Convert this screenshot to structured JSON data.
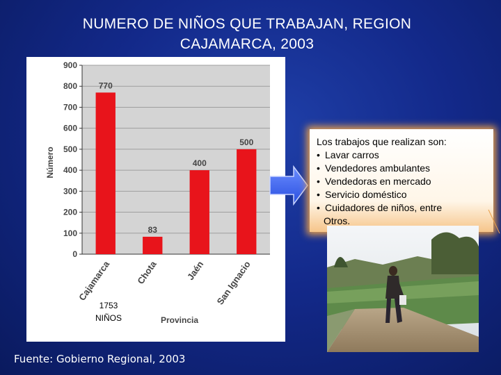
{
  "title": {
    "line1": "NUMERO DE NIÑOS QUE TRABAJAN, REGION",
    "line2": "CAJAMARCA, 2003"
  },
  "chart_data": {
    "type": "bar",
    "categories": [
      "Cajamarca",
      "Chota",
      "Jaén",
      "San Ignacio"
    ],
    "values": [
      770,
      83,
      400,
      500
    ],
    "value_labels": [
      "770",
      "83",
      "400",
      "500"
    ],
    "xlabel": "Provincia",
    "ylabel": "Número",
    "ylim": [
      0,
      900
    ],
    "yticks": [
      0,
      100,
      200,
      300,
      400,
      500,
      600,
      700,
      800,
      900
    ],
    "grid": true,
    "bar_color": "#e8141b",
    "plot_background": "#d4d4d4",
    "total_label": [
      "1753",
      "NIÑOS"
    ]
  },
  "info_box": {
    "heading": "Los trabajos que realizan son:",
    "items": [
      "Lavar carros",
      "Vendedores ambulantes",
      "Vendedoras en mercado",
      "Servicio doméstico",
      "Cuidadores de niños, entre"
    ],
    "continuation": "Otros.",
    "bullet": "•"
  },
  "photo": {
    "icon": "photo-child-worker-icon"
  },
  "source": "Fuente: Gobierno Regional, 2003"
}
